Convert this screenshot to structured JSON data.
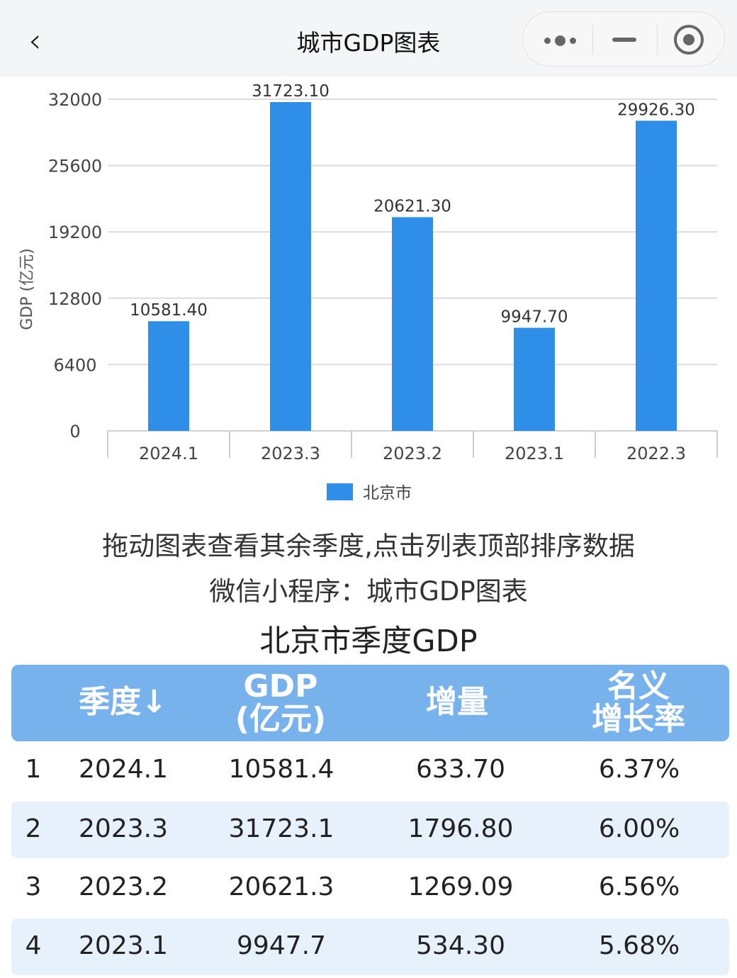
{
  "nav": {
    "title": "城市GDP图表",
    "back_icon": "chevron-left-icon",
    "more_icon": "more-dots-icon",
    "minimize_icon": "minus-icon",
    "close_icon": "target-circle-icon"
  },
  "chart_data": {
    "type": "bar",
    "title": "",
    "xlabel": "",
    "ylabel": "GDP (亿元)",
    "categories": [
      "2024.1",
      "2023.3",
      "2023.2",
      "2023.1",
      "2022.3"
    ],
    "series": [
      {
        "name": "北京市",
        "values": [
          10581.4,
          31723.1,
          20621.3,
          9947.7,
          29926.3
        ],
        "labels": [
          "10581.40",
          "31723.10",
          "20621.30",
          "9947.70",
          "29926.30"
        ]
      }
    ],
    "ylim": [
      0,
      32000
    ],
    "yticks": [
      "0",
      "6400",
      "12800",
      "19200",
      "25600",
      "32000"
    ],
    "grid": true,
    "legend": "bottom",
    "color": "#2f8ee8"
  },
  "notes": {
    "line1": "拖动图表查看其余季度,点击列表顶部排序数据",
    "line2": "微信小程序：城市GDP图表",
    "table_title": "北京市季度GDP"
  },
  "table": {
    "headers": [
      "季度↓",
      "GDP\n(亿元)",
      "增量",
      "名义\n增长率"
    ],
    "header_lines": {
      "gdp1": "GDP",
      "gdp2": "(亿元)",
      "rate1": "名义",
      "rate2": "增长率"
    },
    "rows": [
      [
        "1",
        "2024.1",
        "10581.4",
        "633.70",
        "6.37%"
      ],
      [
        "2",
        "2023.3",
        "31723.1",
        "1796.80",
        "6.00%"
      ],
      [
        "3",
        "2023.2",
        "20621.3",
        "1269.09",
        "6.56%"
      ],
      [
        "4",
        "2023.1",
        "9947.7",
        "534.30",
        "5.68%"
      ]
    ]
  }
}
